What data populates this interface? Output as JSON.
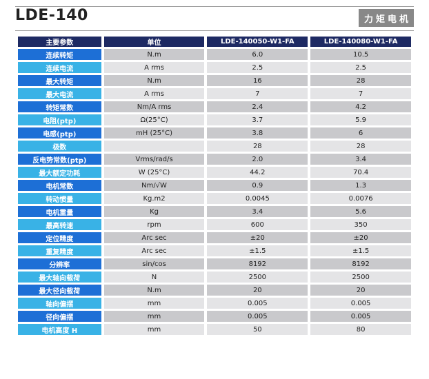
{
  "header": {
    "model": "LDE-140",
    "category": "力矩电机"
  },
  "table": {
    "columns": [
      "主要参数",
      "单位",
      "LDE-140050-W1-FA",
      "LDE-140080-W1-FA"
    ],
    "rows": [
      {
        "param": "连续转矩",
        "unit": "N.m",
        "v1": "6.0",
        "v2": "10.5"
      },
      {
        "param": "连续电流",
        "unit": "A rms",
        "v1": "2.5",
        "v2": "2.5"
      },
      {
        "param": "最大转矩",
        "unit": "N.m",
        "v1": "16",
        "v2": "28"
      },
      {
        "param": "最大电流",
        "unit": "A rms",
        "v1": "7",
        "v2": "7"
      },
      {
        "param": "转矩常数",
        "unit": "Nm/A rms",
        "v1": "2.4",
        "v2": "4.2"
      },
      {
        "param": "电阻(ptp)",
        "unit": "Ω(25°C)",
        "v1": "3.7",
        "v2": "5.9"
      },
      {
        "param": "电感(ptp)",
        "unit": "mH (25°C)",
        "v1": "3.8",
        "v2": "6"
      },
      {
        "param": "极数",
        "unit": "",
        "v1": "28",
        "v2": "28"
      },
      {
        "param": "反电势常数(ptp)",
        "unit": "Vrms/rad/s",
        "v1": "2.0",
        "v2": "3.4"
      },
      {
        "param": "最大额定功耗",
        "unit": "W (25°C)",
        "v1": "44.2",
        "v2": "70.4"
      },
      {
        "param": "电机常数",
        "unit": "Nm/√W",
        "v1": "0.9",
        "v2": "1.3"
      },
      {
        "param": "转动惯量",
        "unit": "Kg.m2",
        "v1": "0.0045",
        "v2": "0.0076"
      },
      {
        "param": "电机重量",
        "unit": "Kg",
        "v1": "3.4",
        "v2": "5.6"
      },
      {
        "param": "最高转速",
        "unit": "rpm",
        "v1": "600",
        "v2": "350"
      },
      {
        "param": "定位精度",
        "unit": "Arc sec",
        "v1": "±20",
        "v2": "±20"
      },
      {
        "param": "重复精度",
        "unit": "Arc sec",
        "v1": "±1.5",
        "v2": "±1.5"
      },
      {
        "param": "分辨率",
        "unit": "sin/cos",
        "v1": "8192",
        "v2": "8192"
      },
      {
        "param": "最大轴向载荷",
        "unit": "N",
        "v1": "2500",
        "v2": "2500"
      },
      {
        "param": "最大径向载荷",
        "unit": "N.m",
        "v1": "20",
        "v2": "20"
      },
      {
        "param": "轴向偏摆",
        "unit": "mm",
        "v1": "0.005",
        "v2": "0.005"
      },
      {
        "param": "径向偏摆",
        "unit": "mm",
        "v1": "0.005",
        "v2": "0.005"
      },
      {
        "param": "电机高度 H",
        "unit": "mm",
        "v1": "50",
        "v2": "80"
      }
    ]
  }
}
